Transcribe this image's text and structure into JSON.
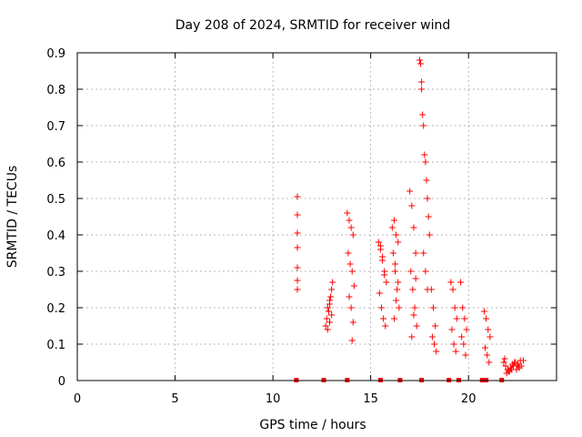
{
  "chart_data": {
    "type": "scatter",
    "title": "Day 208 of 2024, SRMTID for receiver wind",
    "xlabel": "GPS time / hours",
    "ylabel": "SRMTID / TECUs",
    "xlim": [
      0,
      24.5
    ],
    "ylim": [
      0,
      0.9
    ],
    "xticks": [
      0,
      5,
      10,
      15,
      20
    ],
    "yticks": [
      0,
      0.1,
      0.2,
      0.3,
      0.4,
      0.5,
      0.6,
      0.7,
      0.8,
      0.9
    ],
    "ytick_labels": [
      "0",
      "0.1",
      "0.2",
      "0.3",
      "0.4",
      "0.5",
      "0.6",
      "0.7",
      "0.8",
      "0.9"
    ],
    "grid": true,
    "marker": "+",
    "color": "#ff0000",
    "zero_markers_x": [
      11.2,
      12.6,
      13.8,
      15.5,
      16.5,
      17.6,
      19.0,
      19.5,
      20.7,
      20.9,
      21.7
    ],
    "series": [
      {
        "name": "SRMTID",
        "x": [
          11.25,
          11.25,
          11.25,
          11.25,
          11.25,
          11.25,
          11.25,
          12.7,
          12.8,
          12.9,
          13.0,
          12.75,
          12.85,
          12.95,
          13.05,
          12.8,
          12.9,
          13.0,
          12.9,
          13.8,
          13.9,
          14.0,
          14.1,
          13.85,
          13.95,
          14.05,
          14.15,
          13.9,
          14.0,
          14.1,
          14.05,
          15.4,
          15.5,
          15.6,
          15.7,
          15.8,
          15.45,
          15.55,
          15.65,
          15.75,
          15.5,
          15.6,
          15.7,
          16.1,
          16.2,
          16.3,
          16.4,
          16.15,
          16.25,
          16.35,
          16.45,
          16.2,
          16.3,
          16.4,
          16.25,
          17.0,
          17.1,
          17.2,
          17.3,
          17.05,
          17.15,
          17.25,
          17.35,
          17.1,
          17.2,
          17.3,
          17.5,
          17.55,
          17.6,
          17.6,
          17.65,
          17.7,
          17.75,
          17.8,
          17.85,
          17.9,
          17.95,
          18.0,
          17.7,
          17.8,
          17.9,
          18.1,
          18.2,
          18.3,
          18.15,
          18.25,
          18.35,
          19.1,
          19.2,
          19.3,
          19.4,
          19.15,
          19.25,
          19.35,
          19.6,
          19.7,
          19.8,
          19.9,
          19.65,
          19.75,
          19.85,
          20.8,
          20.9,
          21.0,
          21.1,
          20.85,
          20.95,
          21.05,
          21.8,
          21.9,
          22.0,
          22.1,
          22.2,
          22.3,
          22.4,
          22.5,
          22.6,
          22.7,
          22.8,
          21.85,
          21.95,
          22.05,
          22.15,
          22.25,
          22.35,
          22.45,
          22.55,
          22.65
        ],
        "y": [
          0.505,
          0.455,
          0.405,
          0.365,
          0.31,
          0.275,
          0.25,
          0.15,
          0.2,
          0.22,
          0.25,
          0.17,
          0.19,
          0.23,
          0.27,
          0.14,
          0.16,
          0.18,
          0.21,
          0.46,
          0.44,
          0.42,
          0.4,
          0.35,
          0.32,
          0.3,
          0.26,
          0.23,
          0.2,
          0.16,
          0.11,
          0.38,
          0.36,
          0.34,
          0.3,
          0.27,
          0.24,
          0.2,
          0.17,
          0.15,
          0.37,
          0.33,
          0.29,
          0.42,
          0.44,
          0.4,
          0.38,
          0.35,
          0.3,
          0.25,
          0.2,
          0.17,
          0.22,
          0.27,
          0.32,
          0.52,
          0.48,
          0.42,
          0.35,
          0.3,
          0.25,
          0.2,
          0.15,
          0.12,
          0.18,
          0.28,
          0.88,
          0.87,
          0.82,
          0.8,
          0.73,
          0.7,
          0.62,
          0.6,
          0.55,
          0.5,
          0.45,
          0.4,
          0.35,
          0.3,
          0.25,
          0.25,
          0.2,
          0.15,
          0.12,
          0.1,
          0.08,
          0.27,
          0.25,
          0.2,
          0.17,
          0.14,
          0.1,
          0.08,
          0.27,
          0.2,
          0.17,
          0.14,
          0.12,
          0.1,
          0.07,
          0.19,
          0.17,
          0.14,
          0.12,
          0.09,
          0.07,
          0.05,
          0.05,
          0.04,
          0.03,
          0.025,
          0.03,
          0.04,
          0.05,
          0.045,
          0.035,
          0.04,
          0.055,
          0.06,
          0.02,
          0.025,
          0.035,
          0.045,
          0.05,
          0.03,
          0.04,
          0.055
        ]
      }
    ]
  }
}
